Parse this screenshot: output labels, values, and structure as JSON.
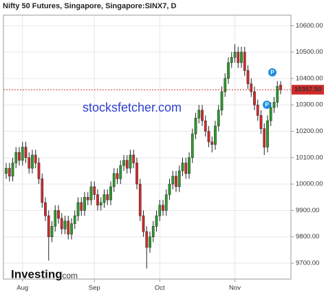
{
  "chart_data": {
    "type": "candlestick",
    "title": "Nifty 50 Futures, Singapore, Singapore:SINX7, D",
    "watermark": "stocksfetcher.com",
    "logo": "Investing",
    "logo_suffix": ".com",
    "annotations": [
      "P",
      "P"
    ],
    "up_color": "#2a9d2a",
    "down_color": "#d42a2a",
    "grid": true,
    "categories": [
      null,
      null,
      null,
      null,
      null,
      "Aug",
      null,
      null,
      null,
      null,
      null,
      null,
      null,
      null,
      null,
      null,
      null,
      null,
      null,
      null,
      null,
      null,
      null,
      null,
      null,
      null,
      null,
      "Sep",
      null,
      null,
      null,
      null,
      null,
      null,
      null,
      null,
      null,
      null,
      null,
      null,
      null,
      null,
      null,
      null,
      null,
      null,
      null,
      "Oct",
      null,
      null,
      null,
      null,
      null,
      null,
      null,
      null,
      null,
      null,
      null,
      null,
      null,
      null,
      null,
      null,
      null,
      null,
      null,
      null,
      null,
      null,
      "Nov",
      null,
      null,
      null,
      null,
      null,
      null,
      null,
      null,
      null,
      null,
      null,
      null,
      null,
      null
    ],
    "open": [
      10040,
      10060,
      10030,
      10080,
      10120,
      10090,
      10140,
      10100,
      10060,
      10110,
      10080,
      10020,
      9930,
      9880,
      9800,
      9840,
      9900,
      9870,
      9830,
      9860,
      9810,
      9850,
      9880,
      9930,
      9900,
      9950,
      9940,
      9990,
      9960,
      9920,
      9930,
      9960,
      9940,
      9990,
      10040,
      10020,
      10070,
      10090,
      10060,
      10110,
      10080,
      10000,
      9880,
      9820,
      9760,
      9800,
      9840,
      9880,
      9920,
      9900,
      9960,
      10000,
      10030,
      9990,
      10050,
      10080,
      10040,
      10100,
      10190,
      10250,
      10280,
      10240,
      10200,
      10160,
      10150,
      10220,
      10280,
      10350,
      10400,
      10460,
      10480,
      10500,
      10460,
      10500,
      10430,
      10380,
      10350,
      10300,
      10260,
      10210,
      10140,
      10240,
      10290,
      10310,
      10375
    ],
    "high": [
      10080,
      10080,
      10100,
      10140,
      10140,
      10160,
      10160,
      10120,
      10130,
      10130,
      10100,
      10040,
      9950,
      9900,
      9860,
      9920,
      9920,
      9890,
      9880,
      9880,
      9870,
      9900,
      9950,
      9950,
      9970,
      9970,
      10010,
      10010,
      9980,
      9950,
      9980,
      9980,
      10010,
      10060,
      10060,
      10090,
      10110,
      10110,
      10130,
      10130,
      10100,
      10020,
      9900,
      9840,
      9820,
      9860,
      9900,
      9940,
      9940,
      9980,
      10020,
      10050,
      10050,
      10070,
      10100,
      10100,
      10120,
      10210,
      10270,
      10300,
      10300,
      10260,
      10220,
      10180,
      10240,
      10300,
      10370,
      10420,
      10480,
      10500,
      10530,
      10520,
      10520,
      10520,
      10450,
      10400,
      10370,
      10320,
      10280,
      10230,
      10260,
      10310,
      10330,
      10390,
      10390
    ],
    "low": [
      10020,
      10010,
      10010,
      10060,
      10070,
      10070,
      10080,
      10040,
      10040,
      10060,
      10000,
      9910,
      9860,
      9710,
      9780,
      9820,
      9850,
      9810,
      9810,
      9790,
      9790,
      9830,
      9860,
      9880,
      9880,
      9920,
      9920,
      9940,
      9900,
      9900,
      9910,
      9920,
      9920,
      9970,
      10000,
      10000,
      10050,
      10040,
      10040,
      10060,
      9980,
      9860,
      9800,
      9680,
      9740,
      9780,
      9820,
      9860,
      9880,
      9880,
      9940,
      9980,
      9970,
      9970,
      10030,
      10020,
      10020,
      10080,
      10170,
      10230,
      10220,
      10180,
      10140,
      10120,
      10130,
      10200,
      10260,
      10330,
      10380,
      10440,
      10460,
      10440,
      10440,
      10410,
      10360,
      10330,
      10280,
      10240,
      10190,
      10110,
      10120,
      10220,
      10270,
      10290,
      10340
    ],
    "close": [
      10060,
      10030,
      10080,
      10120,
      10090,
      10140,
      10100,
      10060,
      10110,
      10080,
      10020,
      9930,
      9880,
      9800,
      9840,
      9900,
      9870,
      9830,
      9860,
      9810,
      9850,
      9880,
      9930,
      9900,
      9950,
      9940,
      9990,
      9960,
      9920,
      9930,
      9960,
      9940,
      9990,
      10040,
      10020,
      10070,
      10090,
      10060,
      10110,
      10080,
      10000,
      9880,
      9820,
      9760,
      9800,
      9840,
      9880,
      9920,
      9900,
      9960,
      10000,
      10030,
      9990,
      10050,
      10080,
      10040,
      10100,
      10190,
      10250,
      10280,
      10240,
      10200,
      10160,
      10150,
      10220,
      10280,
      10350,
      10400,
      10460,
      10480,
      10500,
      10460,
      10500,
      10430,
      10380,
      10350,
      10300,
      10260,
      10210,
      10140,
      10240,
      10290,
      10310,
      10370,
      10357.5
    ],
    "last_price": {
      "value": 10357.5,
      "label": "10357.50"
    },
    "ylim": [
      9640,
      10640
    ],
    "yticks": [
      {
        "value": 9700,
        "label": "9700.00"
      },
      {
        "value": 9800,
        "label": "9800.00"
      },
      {
        "value": 9900,
        "label": "9900.00"
      },
      {
        "value": 10000,
        "label": "10000.00"
      },
      {
        "value": 10100,
        "label": "10100.00"
      },
      {
        "value": 10200,
        "label": "10200.00"
      },
      {
        "value": 10300,
        "label": "10300.00"
      },
      {
        "value": 10400,
        "label": "10400.00"
      },
      {
        "value": 10500,
        "label": "10500.00"
      },
      {
        "value": 10600,
        "label": "10600.00"
      }
    ]
  }
}
